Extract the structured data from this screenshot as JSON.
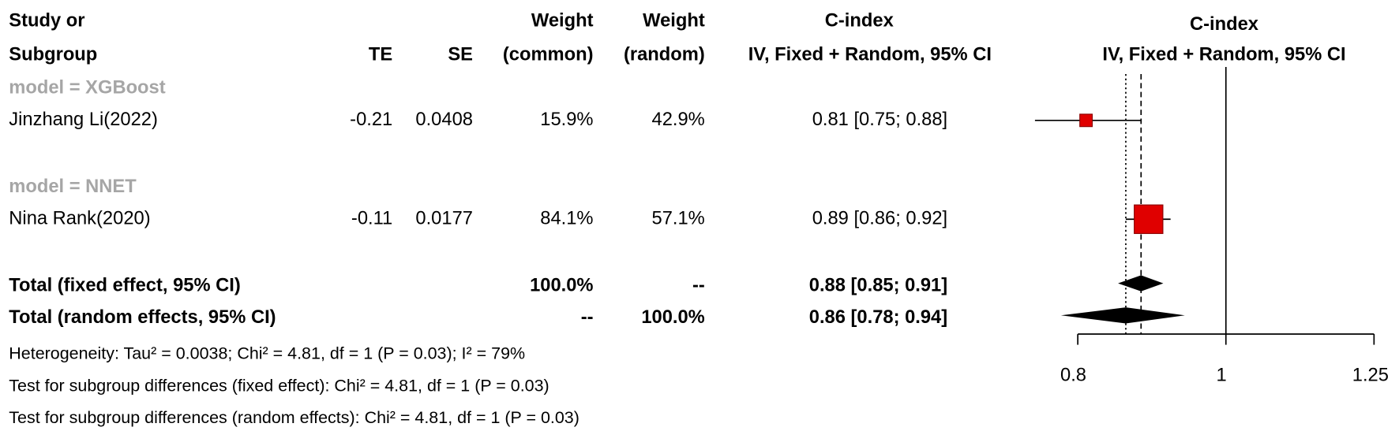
{
  "chart_data": {
    "type": "forest",
    "headers": {
      "study": [
        "Study or",
        "Subgroup"
      ],
      "te": "TE",
      "se": "SE",
      "weight_common": [
        "Weight",
        "(common)"
      ],
      "weight_random": [
        "Weight",
        "(random)"
      ],
      "ci": [
        "C-index",
        "IV, Fixed + Random, 95% CI"
      ],
      "plot": [
        "C-index",
        "IV, Fixed + Random, 95% CI"
      ]
    },
    "subgroups": [
      {
        "label": "model = XGBoost",
        "studies": [
          {
            "name": "Jinzhang Li(2022)",
            "te": "-0.21",
            "se": "0.0408",
            "weight_common": "15.9%",
            "weight_random": "42.9%",
            "ci_label": "0.81 [0.75; 0.88]",
            "estimate": 0.81,
            "lower": 0.75,
            "upper": 0.88
          }
        ]
      },
      {
        "label": "model = NNET",
        "studies": [
          {
            "name": "Nina Rank(2020)",
            "te": "-0.11",
            "se": "0.0177",
            "weight_common": "84.1%",
            "weight_random": "57.1%",
            "ci_label": "0.89 [0.86; 0.92]",
            "estimate": 0.89,
            "lower": 0.86,
            "upper": 0.92
          }
        ]
      }
    ],
    "totals": [
      {
        "name": "Total (fixed effect, 95% CI)",
        "weight_common": "100.0%",
        "weight_random": "--",
        "ci_label": "0.88 [0.85; 0.91]",
        "estimate": 0.88,
        "lower": 0.85,
        "upper": 0.91,
        "line_style": "dashed"
      },
      {
        "name": "Total (random effects, 95% CI)",
        "weight_common": "--",
        "weight_random": "100.0%",
        "ci_label": "0.86 [0.78; 0.94]",
        "estimate": 0.86,
        "lower": 0.78,
        "upper": 0.94,
        "line_style": "dotted"
      }
    ],
    "notes": [
      "Heterogeneity: Tau² = 0.0038; Chi² = 4.81, df = 1 (P = 0.03); I² = 79%",
      "Test for subgroup differences (fixed effect): Chi² = 4.81, df = 1 (P = 0.03)",
      "Test for subgroup differences (random effects): Chi² = 4.81, df = 1 (P = 0.03)"
    ],
    "xlim": [
      0.8,
      1.25
    ],
    "xticks": [
      0.8,
      1,
      1.25
    ],
    "log_x": true,
    "reference_line": 1,
    "box_color": "#e00000",
    "diamond_color": "#000000",
    "subgroup_color": "#a6a6a6"
  }
}
